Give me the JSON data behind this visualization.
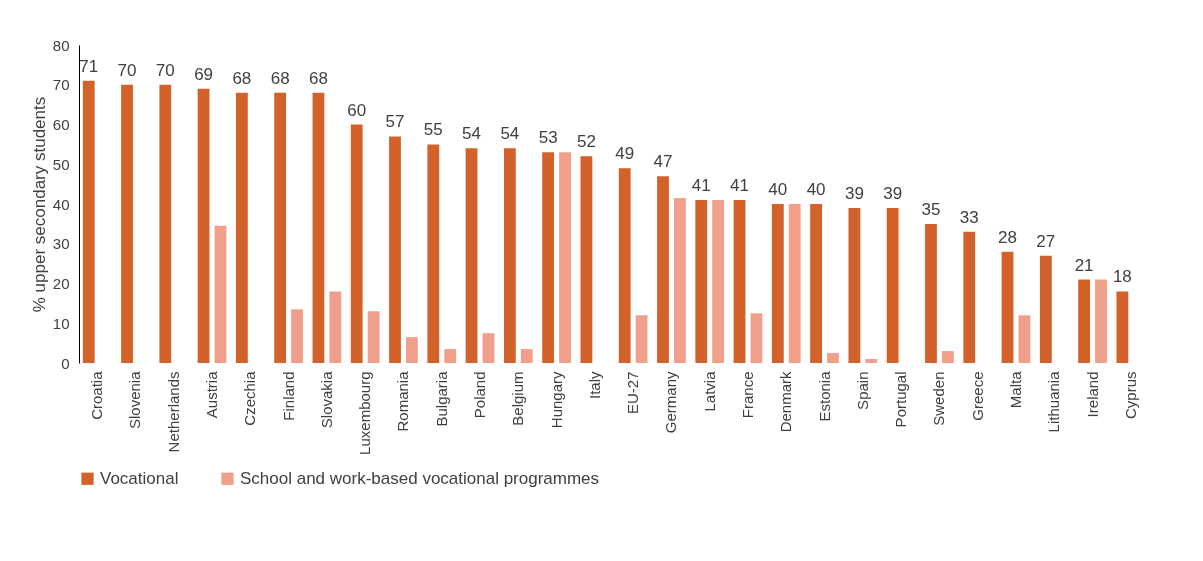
{
  "chart_data": {
    "type": "bar",
    "ylabel": "% upper secondary students",
    "categories": [
      "Croatia",
      "Slovenia",
      "Netherlands",
      "Austria",
      "Czechia",
      "Finland",
      "Slovakia",
      "Luxembourg",
      "Romania",
      "Bulgaria",
      "Poland",
      "Belgium",
      "Hungary",
      "Italy",
      "EU-27",
      "Germany",
      "Latvia",
      "France",
      "Denmark",
      "Estonia",
      "Spain",
      "Portugal",
      "Sweden",
      "Greece",
      "Malta",
      "Lithuania",
      "Ireland",
      "Cyprus"
    ],
    "series": [
      {
        "name": "Vocational",
        "color": "#d2622a",
        "values": [
          71,
          70,
          70,
          69,
          68,
          68,
          68,
          60,
          57,
          55,
          54,
          54,
          53,
          52,
          49,
          47,
          41,
          41,
          40,
          40,
          39,
          39,
          35,
          33,
          28,
          27,
          21,
          18
        ],
        "value_labels": [
          "71",
          "70",
          "70",
          "69",
          "68",
          "68",
          "68",
          "60",
          "57",
          "55",
          "54",
          "54",
          "53",
          "52",
          "49",
          "47",
          "41",
          "41",
          "40",
          "40",
          "39",
          "39",
          "35",
          "33",
          "28",
          "27",
          "21",
          "18"
        ]
      },
      {
        "name": "School and work-based vocational programmes",
        "color": "#f0a08a",
        "values": [
          null,
          null,
          null,
          34.5,
          null,
          13.5,
          18,
          13,
          6.5,
          3.5,
          7.5,
          3.5,
          53,
          null,
          12,
          41.5,
          41,
          12.5,
          40,
          2.5,
          1,
          null,
          3,
          null,
          12,
          null,
          21,
          null
        ]
      }
    ],
    "ylim": [
      0,
      80
    ],
    "yticks": [
      0,
      10,
      20,
      30,
      40,
      50,
      60,
      70,
      80
    ],
    "grid": false,
    "legend": "bottom"
  }
}
